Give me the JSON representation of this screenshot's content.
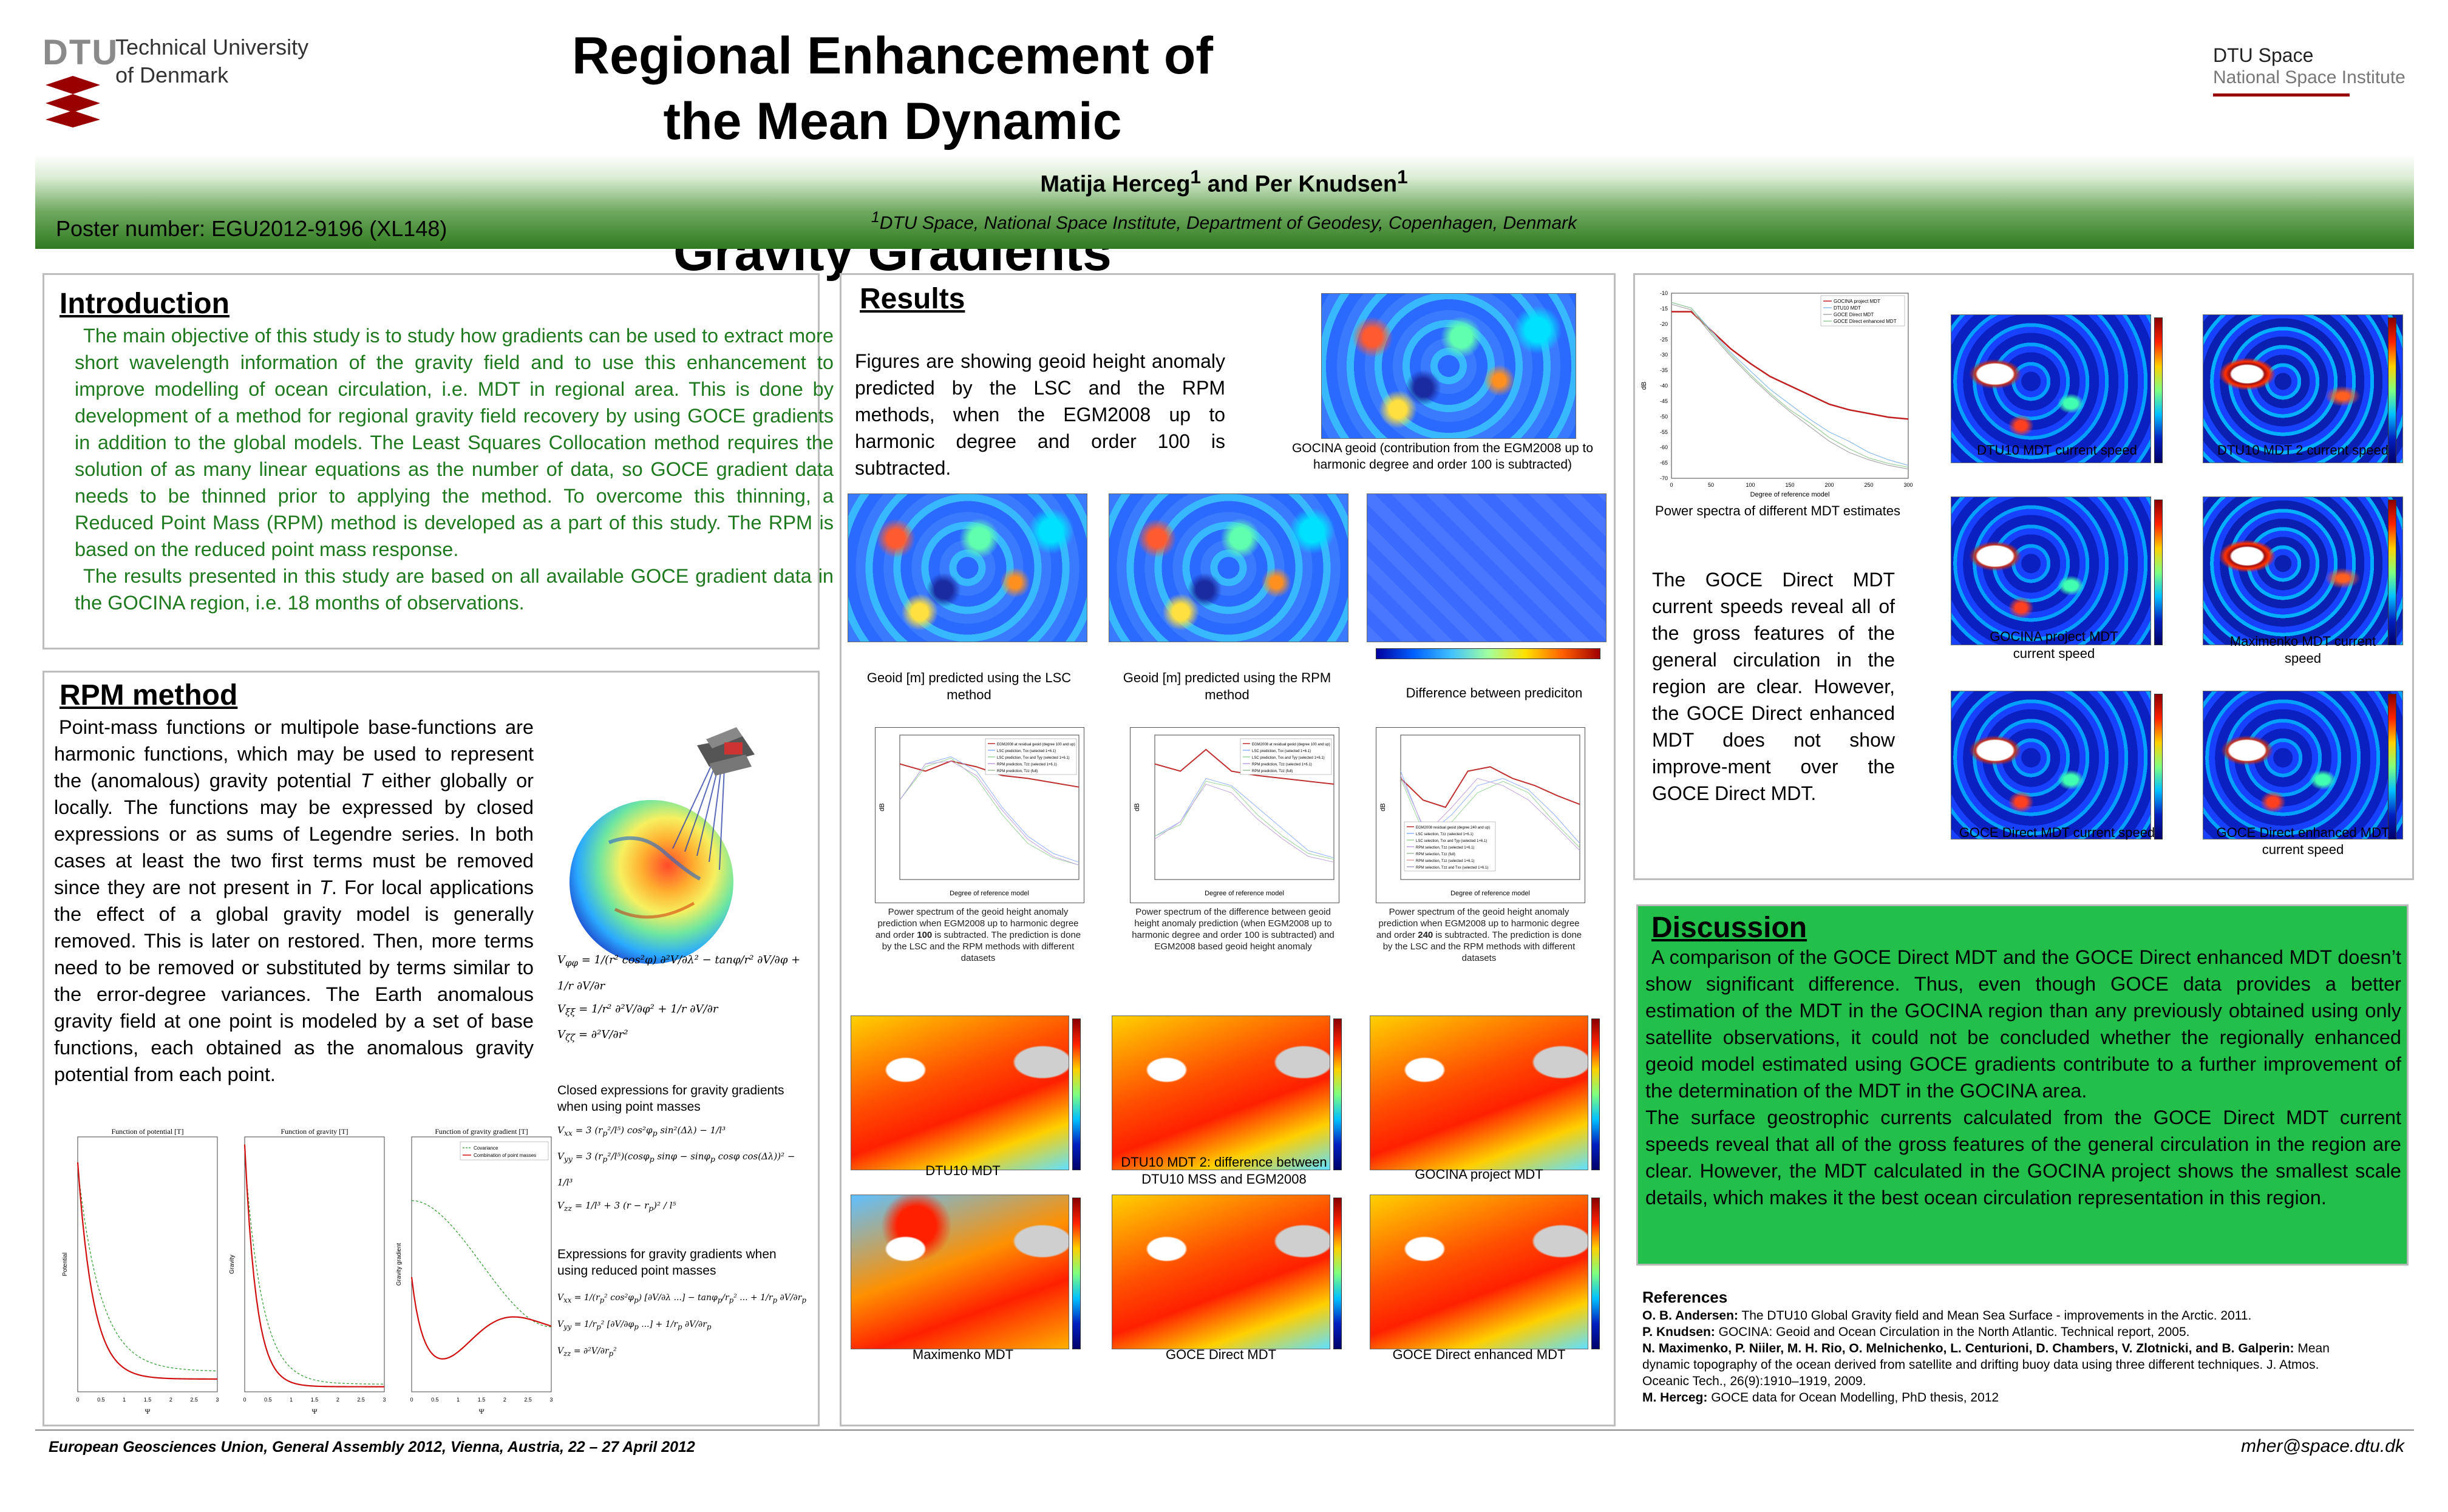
{
  "header": {
    "dtu_mark": "DTU",
    "university": [
      "Technical University",
      "of Denmark"
    ],
    "title_lines": [
      "Regional Enhancement of the Mean Dynamic",
      "Topography using GOCE Gravity Gradients"
    ],
    "institute_name": "DTU Space",
    "institute_sub": "National Space Institute",
    "authors": "Matija Herceg<sup>1</sup> and Per Knudsen<sup>1</sup>",
    "affiliation": "<sup>1</sup>DTU Space, National Space Institute, Department of Geodesy, Copenhagen, Denmark",
    "poster_number": "Poster number: EGU2012-9196 (XL148)"
  },
  "introduction": {
    "heading": "Introduction",
    "p1": "The main objective of this study is to study how gradients can be used to extract more short wavelength information of the gravity field and to use this enhancement to improve modelling of ocean circulation, i.e. MDT in regional area. This is done by development of a method for regional gravity field recovery by using GOCE gradients in addition to the global models. The Least Squares Collocation method requires the solution of as many linear equations as the number of data, so GOCE gradient data needs to be thinned prior to applying the method. To overcome this thinning, a Reduced Point Mass (RPM) method is developed as a part of this study. The RPM is based on the reduced point mass response.",
    "p2": "The results presented in this study are based on all available GOCE gradient data in the GOCINA region, i.e. 18 months of observations."
  },
  "rpm": {
    "heading": "RPM method",
    "text": "Point-mass functions or multipole base-functions are harmonic functions, which may be used to represent the (anomalous) gravity potential <i>T</i> either globally or locally. The functions may be expressed by closed expressions or as sums of Legendre series. In both cases at least the two first terms must be removed since they are not present in <i>T</i>. For local applications the effect of a global gravity model is generally removed. This is later on restored. Then, more terms need to be removed or substituted by terms similar to the error-degree variances. The Earth anomalous gravity field at one point is modeled by a set of base functions, each obtained as the anomalous gravity potential from each point.",
    "formula1": [
      "V<sub>φφ</sub> = 1/(r² cos²φ) ∂²V/∂λ² − tanφ/r² ∂V/∂φ + 1/r ∂V/∂r",
      "V<sub>ξξ</sub> = 1/r² ∂²V/∂φ² + 1/r ∂V/∂r",
      "V<sub>ζζ</sub> = ∂²V/∂r²"
    ],
    "caption1": "Closed expressions for gravity gradients when using point masses",
    "formula2": [
      "V<sub>xx</sub> = 3 (r<sub>p</sub>²/l⁵) cos²φ<sub>p</sub> sin²(Δλ) − 1/l³",
      "V<sub>yy</sub> = 3 (r<sub>p</sub>²/l⁵)(cosφ<sub>p</sub> sinφ − sinφ<sub>p</sub> cosφ cos(Δλ))² − 1/l³",
      "V<sub>zz</sub> = 1/l³ + 3 (r − r<sub>p</sub>)² / l⁵"
    ],
    "caption2": "Expressions for gravity gradients when using reduced point masses",
    "formula3": [
      "V<sub>xx</sub> = 1/(r<sub>p</sub>² cos²φ<sub>p</sub>) [∂V/∂λ ...] − tanφ<sub>p</sub>/r<sub>p</sub>² ... + 1/r<sub>p</sub> ∂V/∂r<sub>p</sub>",
      "V<sub>yy</sub> = 1/r<sub>p</sub>² [∂V/∂φ<sub>p</sub> ...] + 1/r<sub>p</sub> ∂V/∂r<sub>p</sub>",
      "V<sub>zz</sub> = ∂²V/∂r<sub>p</sub>²"
    ],
    "plot_titles": [
      "Function of potential [T]",
      "Function of gravity [T]",
      "Function of gravity gradient [T]"
    ],
    "plot_xlabel": "Ψ",
    "plot_ylabels": [
      "Potential",
      "Gravity",
      "Gravity gradient"
    ],
    "plot_legend": [
      "Covariance",
      "Combination of point masses"
    ],
    "plot_xticks": [
      "0",
      "0.5",
      "1",
      "1.5",
      "2",
      "2.5",
      "3"
    ]
  },
  "results": {
    "heading": "Results",
    "text": "Figures are showing geoid height anomaly predicted by the LSC and the RPM methods, when the EGM2008 up to harmonic degree and order 100 is subtracted.",
    "gocina_geoid_caption": "GOCINA geoid  (contribution from the EGM2008 up to harmonic degree and order 100 is subtracted)",
    "geoid_captions": [
      "Geoid  [m] predicted using the LSC method",
      "Geoid [m] predicted using the RPM method",
      "Difference between prediciton"
    ],
    "spectrum_captions": [
      "Power spectrum of the geoid height anomaly prediction when EGM2008 up to harmonic degree and order <b>100</b> is subtracted. The prediction is done by the LSC and the RPM methods with different datasets",
      "Power spectrum of the difference between geoid height anomaly prediction (when EGM2008 up to harmonic degree and order 100 is subtracted) and EGM2008 based geoid height anomaly",
      "Power spectrum of the geoid height anomaly prediction when EGM2008 up to harmonic degree and order <b>240</b> is subtracted. The prediction is done by the LSC and the RPM methods with different datasets"
    ],
    "spectrum_xlabel": "Degree of reference model",
    "spectrum_ylabel": "dB",
    "spectrum_legends": [
      [
        "EGM2008 at residual geoid (degree 100 and up)",
        "LSC prediction, Txx (selected 1+6.1)",
        "LSC prediction, Txx and Tyy (selected 1+6.1)",
        "RPM prediction, Tzz (selected 1+6.1)",
        "RPM prediction, Tzz (full)"
      ],
      [
        "EGM2008 at residual geoid (degree 100 and up)",
        "LSC prediction, Txx (selected 1+6.1)",
        "LSC prediction, Txx and Tyy (selected 1+6.1)",
        "RPM prediction, Tzz (selected 1+6.1)",
        "RPM prediction, Tzz (full)"
      ],
      [
        "EGM2008 residual geoid (degree 240 and up)",
        "LSC selection, Tzz (selected 1+6.1)",
        "LSC selection, Txx and Tyy (selected 1+6.1)",
        "RPM selection, Tzz (selected 1+6.1)",
        "RPM selection, Tzz (full)",
        "RPM selection, Tzz (selected 1+6.1)",
        "RPM selection, Tzz and Txx (selected 1+6.1)"
      ]
    ],
    "mdt_captions": [
      "DTU10 MDT",
      "DTU10 MDT 2: difference between DTU10 MSS and EGM2008",
      "GOCINA project MDT",
      "Maximenko MDT",
      "GOCE Direct MDT",
      "GOCE Direct enhanced MDT"
    ]
  },
  "power_spectra": {
    "caption": "Power spectra of different MDT estimates",
    "legend": [
      "GOCINA project MDT",
      "DTU10 MDT",
      "GOCE Direct MDT",
      "GOCE Direct enhanced MDT"
    ],
    "xlabel": "Degree of reference model",
    "ylabel": "dB",
    "xticks": [
      "0",
      "50",
      "100",
      "150",
      "200",
      "250",
      "300"
    ],
    "yticks": [
      "-10",
      "-15",
      "-20",
      "-25",
      "-30",
      "-35",
      "-40",
      "-45",
      "-50",
      "-55",
      "-60",
      "-65",
      "-70"
    ]
  },
  "currents": {
    "text": "The GOCE Direct MDT current speeds reveal all of the gross features of the general circulation in the region are clear. However, the GOCE Direct enhanced MDT does not show improve-ment over the GOCE Direct MDT.",
    "captions": [
      "DTU10 MDT current speed",
      "DTU10 MDT 2 current speed",
      "GOCINA project MDT current speed",
      "Maximenko MDT current speed",
      "GOCE Direct MDT current speed",
      "GOCE Direct enhanced MDT current speed"
    ]
  },
  "discussion": {
    "heading": "Discussion",
    "p1": "A comparison of the GOCE Direct MDT and the GOCE Direct enhanced MDT doesn’t show significant difference. Thus, even though GOCE data provides a better estimation of the MDT in the GOCINA region than any previously obtained using only satellite observations, it could not be concluded whether the regionally enhanced geoid model estimated using GOCE gradients contribute to a further improvement of the determination of the MDT in the GOCINA area.",
    "p2": "The surface geostrophic currents calculated from the GOCE Direct MDT current speeds reveal that all of the gross features of the general circulation in the region are clear. However, the MDT calculated in the GOCINA project shows the smallest scale details, which makes it the best ocean circulation representation in this region."
  },
  "references": {
    "heading": "References",
    "items": [
      "<b>O. B. Andersen:</b> The DTU10 Global Gravity field and Mean Sea Surface - improvements in the Arctic. 2011.",
      "<b>P. Knudsen:</b> GOCINA: Geoid and Ocean Circulation in the North Atlantic. Technical report, 2005.",
      "<b>N. Maximenko, P. Niiler, M. H. Rio, O. Melnichenko, L. Centurioni, D. Chambers, V. Zlotnicki, and B. Galperin:</b> Mean dynamic topography of the ocean derived from satellite and drifting buoy data using three different techniques. J. Atmos. Oceanic Tech., 26(9):1910–1919, 2009.",
      "<b>M. Herceg:</b> GOCE data for Ocean Modelling, PhD thesis, 2012"
    ]
  },
  "footer": {
    "left": "European Geosciences Union, General Assembly 2012, Vienna, Austria, 22 – 27 April 2012",
    "right": "mher@space.dtu.dk"
  },
  "colors": {
    "header_green": "#2f7a1f",
    "intro_text": "#1f7a1f",
    "discussion_bg": "#22c04a",
    "dtu_red": "#990000"
  }
}
